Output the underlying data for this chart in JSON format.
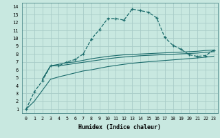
{
  "xlabel": "Humidex (Indice chaleur)",
  "background_color": "#c8e8e0",
  "grid_color": "#a8ccc8",
  "line_color": "#1a6b6b",
  "xlim": [
    -0.5,
    23.5
  ],
  "ylim": [
    0.5,
    14.5
  ],
  "xticks": [
    0,
    1,
    2,
    3,
    4,
    5,
    6,
    7,
    8,
    9,
    10,
    11,
    12,
    13,
    14,
    15,
    16,
    17,
    18,
    19,
    20,
    21,
    22,
    23
  ],
  "yticks": [
    1,
    2,
    3,
    4,
    5,
    6,
    7,
    8,
    9,
    10,
    11,
    12,
    13,
    14
  ],
  "curve1_x": [
    0,
    1,
    2,
    3,
    4,
    5,
    6,
    7,
    8,
    9,
    10,
    11,
    12,
    13,
    14,
    15,
    16,
    17,
    18,
    19,
    20,
    21,
    22,
    23
  ],
  "curve1_y": [
    1.0,
    3.2,
    4.6,
    6.5,
    6.5,
    7.0,
    7.3,
    8.0,
    9.9,
    11.1,
    12.5,
    12.5,
    12.3,
    13.7,
    13.5,
    13.3,
    12.6,
    10.1,
    9.1,
    8.6,
    7.9,
    7.7,
    7.8,
    8.5
  ],
  "curve2_x": [
    2,
    3,
    4,
    5,
    6,
    7,
    8,
    9,
    10,
    11,
    12,
    13,
    14,
    15,
    16,
    17,
    18,
    19,
    20,
    21,
    22,
    23
  ],
  "curve2_y": [
    4.8,
    6.5,
    6.7,
    6.9,
    7.0,
    7.2,
    7.4,
    7.55,
    7.7,
    7.8,
    7.9,
    7.95,
    8.0,
    8.05,
    8.1,
    8.15,
    8.2,
    8.25,
    8.3,
    8.35,
    8.45,
    8.5
  ],
  "curve3_x": [
    2,
    3,
    4,
    5,
    6,
    7,
    8,
    9,
    10,
    11,
    12,
    13,
    14,
    15,
    16,
    17,
    18,
    19,
    20,
    21,
    22,
    23
  ],
  "curve3_y": [
    4.8,
    6.5,
    6.5,
    6.65,
    6.8,
    6.95,
    7.1,
    7.25,
    7.4,
    7.52,
    7.62,
    7.7,
    7.78,
    7.83,
    7.88,
    7.93,
    7.97,
    8.02,
    8.07,
    8.12,
    8.22,
    8.3
  ],
  "curve4_x": [
    0,
    1,
    2,
    3,
    4,
    5,
    6,
    7,
    8,
    9,
    10,
    11,
    12,
    13,
    14,
    15,
    16,
    17,
    18,
    19,
    20,
    21,
    22,
    23
  ],
  "curve4_y": [
    1.0,
    2.0,
    3.4,
    4.8,
    5.1,
    5.35,
    5.6,
    5.85,
    6.0,
    6.2,
    6.4,
    6.55,
    6.7,
    6.82,
    6.93,
    7.02,
    7.1,
    7.18,
    7.26,
    7.34,
    7.42,
    7.5,
    7.6,
    7.72
  ]
}
